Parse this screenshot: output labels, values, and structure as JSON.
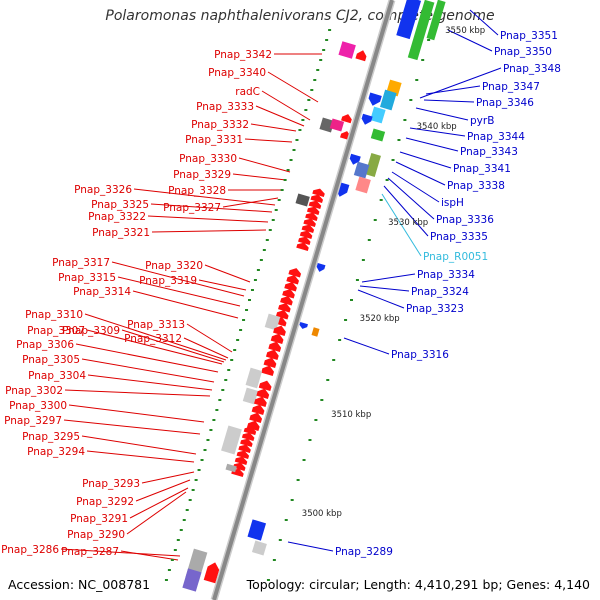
{
  "title": "Polaromonas naphthalenivorans CJ2, complete genome",
  "footer": {
    "accession": "Accession: NC_008781",
    "summary": "Topology: circular; Length: 4,410,291 bp; Genes: 4,140"
  },
  "scale_labels": [
    "3550 kbp",
    "3540 kbp",
    "3530 kbp",
    "3520 kbp",
    "3510 kbp",
    "3500 kbp"
  ],
  "left_labels": [
    "Pnap_3342",
    "Pnap_3340",
    "radC",
    "Pnap_3333",
    "Pnap_3332",
    "Pnap_3331",
    "Pnap_3330",
    "Pnap_3329",
    "Pnap_3328",
    "Pnap_3326",
    "Pnap_3325",
    "Pnap_3327",
    "Pnap_3322",
    "Pnap_3321",
    "Pnap_3320",
    "Pnap_3319",
    "Pnap_3317",
    "Pnap_3315",
    "Pnap_3314",
    "Pnap_3313",
    "Pnap_3312",
    "Pnap_3310",
    "Pnap_3307",
    "Pnap_3309",
    "Pnap_3306",
    "Pnap_3305",
    "Pnap_3304",
    "Pnap_3302",
    "Pnap_3300",
    "Pnap_3297",
    "Pnap_3295",
    "Pnap_3294",
    "Pnap_3293",
    "Pnap_3292",
    "Pnap_3291",
    "Pnap_3290",
    "Pnap_3286",
    "Pnap_3287"
  ],
  "right_labels": [
    "Pnap_3351",
    "Pnap_3350",
    "Pnap_3348",
    "Pnap_3347",
    "Pnap_3346",
    "pyrB",
    "Pnap_3344",
    "Pnap_3343",
    "Pnap_3341",
    "Pnap_3338",
    "ispH",
    "Pnap_3336",
    "Pnap_3335",
    "Pnap_R0051",
    "Pnap_3334",
    "Pnap_3324",
    "Pnap_3323",
    "Pnap_3316",
    "Pnap_3289"
  ],
  "colors": {
    "left_label": "#dd0000",
    "right_label": "#0000cc",
    "rna_label": "#33bbdd",
    "axis": "#888888",
    "tick": "#228822"
  }
}
